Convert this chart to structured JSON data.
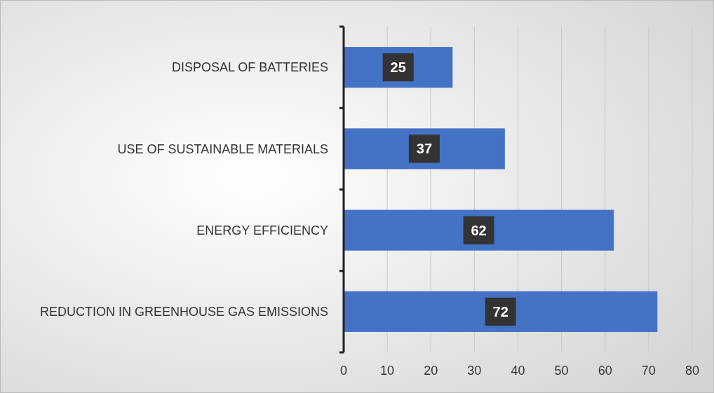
{
  "chart_data": {
    "type": "bar",
    "orientation": "horizontal",
    "categories": [
      "DISPOSAL OF BATTERIES",
      "USE OF SUSTAINABLE MATERIALS",
      "ENERGY EFFICIENCY",
      "REDUCTION IN GREENHOUSE GAS EMISSIONS"
    ],
    "values": [
      25,
      37,
      62,
      72
    ],
    "color": "#4472c4",
    "xlim": [
      0,
      80
    ],
    "xticks": [
      0,
      10,
      20,
      30,
      40,
      50,
      60,
      70,
      80
    ],
    "grid": "x",
    "data_labels": true
  }
}
